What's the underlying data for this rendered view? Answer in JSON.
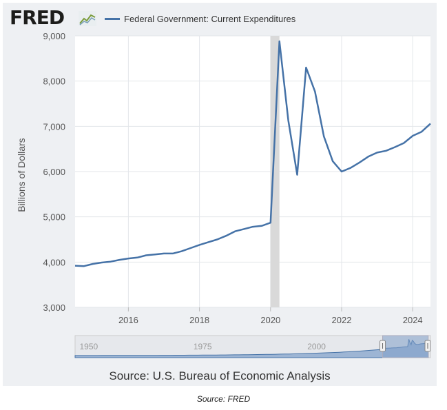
{
  "logo": {
    "text": "FRED"
  },
  "legend": {
    "label": "Federal Government: Current Expenditures",
    "color": "#4572a7"
  },
  "source": "Source: U.S. Bureau of Economic Analysis",
  "caption": "Source: FRED",
  "chart_data": {
    "type": "line",
    "ylabel": "Billions of Dollars",
    "xlabel": "",
    "y_ticks": [
      "3,000",
      "4,000",
      "5,000",
      "6,000",
      "7,000",
      "8,000",
      "9,000"
    ],
    "y_tick_values": [
      3000,
      4000,
      5000,
      6000,
      7000,
      8000,
      9000
    ],
    "x_ticks": [
      "2016",
      "2018",
      "2020",
      "2022",
      "2024"
    ],
    "x_tick_values": [
      2016,
      2018,
      2020,
      2022,
      2024
    ],
    "xlim": [
      2014.5,
      2024.5
    ],
    "ylim": [
      3000,
      9000
    ],
    "grid": true,
    "recession_band": [
      2020.0,
      2020.25
    ],
    "series": [
      {
        "color": "#4572a7",
        "x": [
          2014.5,
          2014.75,
          2015.0,
          2015.25,
          2015.5,
          2015.75,
          2016.0,
          2016.25,
          2016.5,
          2016.75,
          2017.0,
          2017.25,
          2017.5,
          2017.75,
          2018.0,
          2018.25,
          2018.5,
          2018.75,
          2019.0,
          2019.25,
          2019.5,
          2019.75,
          2020.0,
          2020.25,
          2020.5,
          2020.75,
          2021.0,
          2021.25,
          2021.5,
          2021.75,
          2022.0,
          2022.25,
          2022.5,
          2022.75,
          2023.0,
          2023.25,
          2023.5,
          2023.75,
          2024.0,
          2024.25,
          2024.5
        ],
        "y": [
          3920,
          3910,
          3960,
          3990,
          4010,
          4050,
          4080,
          4100,
          4150,
          4170,
          4190,
          4190,
          4240,
          4310,
          4380,
          4440,
          4500,
          4580,
          4680,
          4730,
          4780,
          4800,
          4870,
          8880,
          7130,
          5930,
          8300,
          7770,
          6780,
          6230,
          6000,
          6080,
          6200,
          6330,
          6420,
          6460,
          6540,
          6630,
          6790,
          6880,
          7060
        ]
      }
    ],
    "navigator": {
      "tick_labels": [
        "1950",
        "1975",
        "2000"
      ],
      "tick_values": [
        1950,
        1975,
        2000
      ],
      "range": [
        1947,
        2025
      ],
      "selected": [
        2014.5,
        2024.5
      ]
    }
  }
}
